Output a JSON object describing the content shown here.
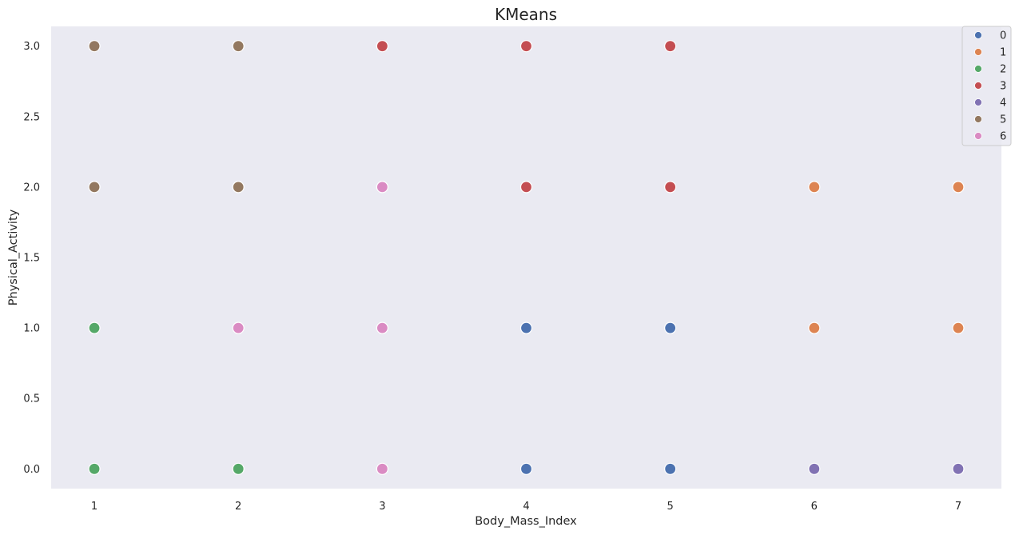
{
  "chart_data": {
    "type": "scatter",
    "title": "KMeans",
    "xlabel": "Body_Mass_Index",
    "ylabel": "Physical_Activity",
    "xlim": [
      0.7,
      7.3
    ],
    "ylim": [
      -0.14,
      3.14
    ],
    "xticks": [
      "1",
      "2",
      "3",
      "4",
      "5",
      "6",
      "7"
    ],
    "yticks": [
      "0.0",
      "0.5",
      "1.0",
      "1.5",
      "2.0",
      "2.5",
      "3.0"
    ],
    "grid": false,
    "background": "#eaeaf2",
    "legend_position": "top-right",
    "series": [
      {
        "name": "0",
        "color": "#4c72b0",
        "points": [
          [
            4,
            1
          ],
          [
            5,
            1
          ],
          [
            4,
            0
          ],
          [
            5,
            0
          ]
        ]
      },
      {
        "name": "1",
        "color": "#dd8452",
        "points": [
          [
            6,
            2
          ],
          [
            7,
            2
          ],
          [
            6,
            1
          ],
          [
            7,
            1
          ]
        ]
      },
      {
        "name": "2",
        "color": "#55a868",
        "points": [
          [
            1,
            1
          ],
          [
            1,
            0
          ],
          [
            2,
            0
          ]
        ]
      },
      {
        "name": "3",
        "color": "#c44e52",
        "points": [
          [
            3,
            3
          ],
          [
            4,
            3
          ],
          [
            5,
            3
          ],
          [
            4,
            2
          ],
          [
            5,
            2
          ]
        ]
      },
      {
        "name": "4",
        "color": "#8172b3",
        "points": [
          [
            6,
            0
          ],
          [
            7,
            0
          ]
        ]
      },
      {
        "name": "5",
        "color": "#937860",
        "points": [
          [
            1,
            3
          ],
          [
            2,
            3
          ],
          [
            1,
            2
          ],
          [
            2,
            2
          ]
        ]
      },
      {
        "name": "6",
        "color": "#da8bc3",
        "points": [
          [
            3,
            2
          ],
          [
            2,
            1
          ],
          [
            3,
            1
          ],
          [
            3,
            0
          ]
        ]
      }
    ]
  }
}
